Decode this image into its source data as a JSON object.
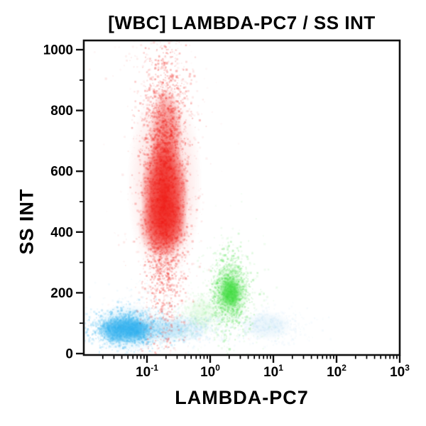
{
  "chart_data": {
    "type": "scatter",
    "subtype": "flow-cytometry-density-plot",
    "title": "[WBC] LAMBDA-PC7 / SS INT",
    "xlabel": "LAMBDA-PC7",
    "ylabel": "SS INT",
    "x_scale": "log",
    "y_scale": "linear",
    "xlim": [
      0.01,
      1000
    ],
    "ylim": [
      0,
      1000
    ],
    "x_major_ticks": [
      0.1,
      1,
      10,
      100,
      1000
    ],
    "x_tick_exponents": [
      "-1",
      "0",
      "1",
      "2",
      "3"
    ],
    "x_tick_base": "10",
    "y_major_ticks": [
      0,
      200,
      400,
      600,
      800,
      1000
    ],
    "y_minor_ticks": [
      100,
      300,
      500,
      700,
      900
    ],
    "grid": false,
    "legend": false,
    "frame_color": "#111111",
    "background_color": "#ffffff",
    "populations": [
      {
        "name": "pale-blue-low-right-population",
        "color": "#8fcaed",
        "centroid": {
          "x": 8,
          "y": 92
        },
        "blobs": [
          {
            "x": 8,
            "y": 92,
            "rx_dec": 0.4,
            "ry": 48,
            "a": 0.2
          }
        ],
        "speckles": [
          {
            "x": 8,
            "y": 92,
            "sx_dec": 0.34,
            "sy": 30,
            "n": 450,
            "a": 0.07,
            "r": 1.2
          }
        ]
      },
      {
        "name": "pale-blue-low-mid-population",
        "color": "#58b9e9",
        "centroid": {
          "x": 0.25,
          "y": 82
        },
        "blobs": [
          {
            "x": 0.18,
            "y": 78,
            "rx_dec": 0.42,
            "ry": 40,
            "a": 0.3
          },
          {
            "x": 0.45,
            "y": 85,
            "rx_dec": 0.38,
            "ry": 45,
            "a": 0.14
          }
        ],
        "speckles": [
          {
            "x": 0.25,
            "y": 82,
            "sx_dec": 0.42,
            "sy": 28,
            "n": 800,
            "a": 0.08,
            "r": 1.2
          }
        ]
      },
      {
        "name": "cyan-low-left-population",
        "color": "#33b1ee",
        "centroid": {
          "x": 0.042,
          "y": 80
        },
        "blobs": [
          {
            "x": 0.042,
            "y": 80,
            "rx_dec": 0.4,
            "ry": 44,
            "a": 0.88
          },
          {
            "x": 0.07,
            "y": 78,
            "rx_dec": 0.22,
            "ry": 38,
            "a": 0.6
          },
          {
            "x": 0.05,
            "y": 85,
            "rx_dec": 0.55,
            "ry": 80,
            "a": 0.22
          }
        ],
        "speckles": [
          {
            "x": 0.045,
            "y": 82,
            "sx_dec": 0.27,
            "sy": 30,
            "n": 1400,
            "a": 0.2,
            "r": 1.2
          },
          {
            "x": 0.06,
            "y": 90,
            "sx_dec": 0.4,
            "sy": 55,
            "n": 500,
            "a": 0.06,
            "r": 1.2
          }
        ]
      },
      {
        "name": "green-population",
        "color": "#3bdb3b",
        "centroid": {
          "x": 2.1,
          "y": 200
        },
        "blobs": [
          {
            "x": 2.1,
            "y": 200,
            "rx_dec": 0.18,
            "ry": 55,
            "a": 0.85
          },
          {
            "x": 2.1,
            "y": 200,
            "rx_dec": 0.3,
            "ry": 100,
            "a": 0.22
          },
          {
            "x": 0.75,
            "y": 135,
            "rx_dec": 0.28,
            "ry": 55,
            "a": 0.1
          }
        ],
        "speckles": [
          {
            "x": 2.1,
            "y": 200,
            "sx_dec": 0.15,
            "sy": 60,
            "n": 900,
            "a": 0.2,
            "r": 1.2
          },
          {
            "x": 2.0,
            "y": 195,
            "sx_dec": 0.27,
            "sy": 110,
            "n": 380,
            "a": 0.07,
            "r": 1.2
          },
          {
            "x": 0.75,
            "y": 135,
            "sx_dec": 0.22,
            "sy": 35,
            "n": 260,
            "a": 0.06,
            "r": 1.2
          }
        ]
      },
      {
        "name": "red-high-ss-population",
        "color": "#ee1c16",
        "centroid": {
          "x": 0.19,
          "y": 520
        },
        "blobs": [
          {
            "x": 0.19,
            "y": 520,
            "rx_dec": 0.38,
            "ry": 200,
            "a": 0.92
          },
          {
            "x": 0.18,
            "y": 420,
            "rx_dec": 0.4,
            "ry": 110,
            "a": 0.55
          },
          {
            "x": 0.2,
            "y": 720,
            "rx_dec": 0.26,
            "ry": 160,
            "a": 0.45
          },
          {
            "x": 0.19,
            "y": 560,
            "rx_dec": 0.6,
            "ry": 330,
            "a": 0.15
          }
        ],
        "speckles": [
          {
            "x": 0.19,
            "y": 540,
            "sx_dec": 0.17,
            "sy": 230,
            "n": 2600,
            "a": 0.22,
            "r": 1.2
          },
          {
            "x": 0.19,
            "y": 650,
            "sx_dec": 0.27,
            "sy": 360,
            "n": 1100,
            "a": 0.08,
            "r": 1.2
          },
          {
            "x": 0.2,
            "y": 500,
            "sx_dec": 0.45,
            "sy": 450,
            "n": 250,
            "a": 0.04,
            "r": 1.1
          }
        ]
      }
    ]
  }
}
